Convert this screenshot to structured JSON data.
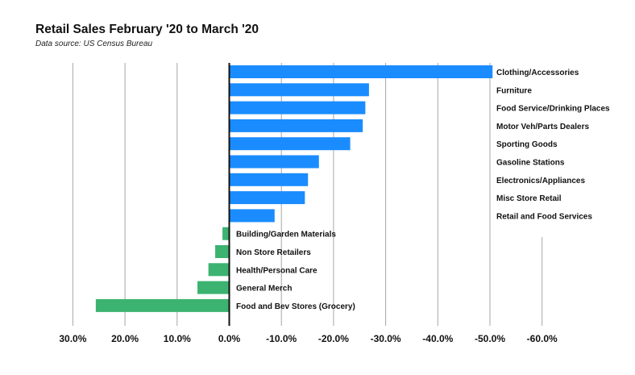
{
  "title": "Retail Sales February '20 to March '20",
  "subtitle": "Data source: US Census Bureau",
  "colors": {
    "positive": "#1a8cff",
    "negative": "#3cb371",
    "axis": "#111111",
    "grid": "#a6a6a6"
  },
  "chart_data": {
    "type": "bar",
    "orientation": "horizontal",
    "x_axis": "reversed",
    "title": "Retail Sales February '20 to March '20",
    "subtitle": "Data source: US Census Bureau",
    "categories": [
      "Clothing/Accessories",
      "Furniture",
      "Food Service/Drinking Places",
      "Motor Veh/Parts Dealers",
      "Sporting Goods",
      "Gasoline Stations",
      "Electronics/Appliances",
      "Misc Store Retail",
      "Retail and Food Services",
      "Building/Garden Materials",
      "Non Store Retailers",
      "Health/Personal Care",
      "General Merch",
      "Food and Bev Stores (Grocery)"
    ],
    "values": [
      -50.5,
      -26.8,
      -26.1,
      -25.6,
      -23.2,
      -17.2,
      -15.1,
      -14.5,
      -8.7,
      1.3,
      2.7,
      4.0,
      6.1,
      25.6
    ],
    "xlim": [
      30,
      -60
    ],
    "ticks": [
      30,
      20,
      10,
      0,
      -10,
      -20,
      -30,
      -40,
      -50,
      -60
    ],
    "tick_labels": [
      "30.0%",
      "20.0%",
      "10.0%",
      "0.0%",
      "-10.0%",
      "-20.0%",
      "-30.0%",
      "-40.0%",
      "-50.0%",
      "-60.0%"
    ],
    "grid": true,
    "legend": "none"
  }
}
